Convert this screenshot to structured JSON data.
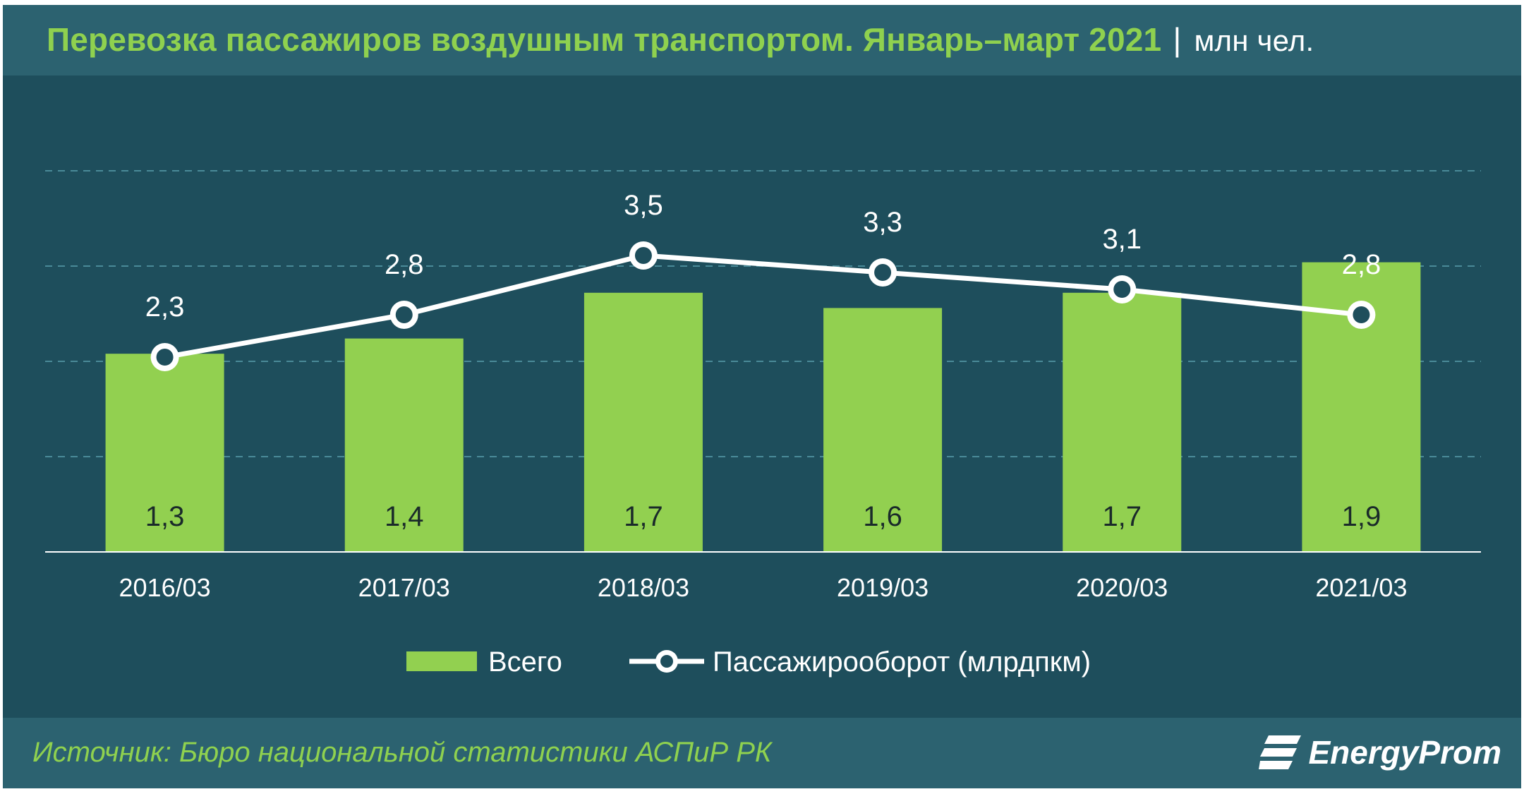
{
  "header": {
    "title": "Перевозка пассажиров воздушным транспортом. Январь–март 2021",
    "separator": "|",
    "unit": "млн чел."
  },
  "footer": {
    "source": "Источник: Бюро национальной  статистики АСПиР РК",
    "logo_text": "EnergyProm"
  },
  "colors": {
    "background": "#1e4e5c",
    "band": "#2c6270",
    "bar": "#92d050",
    "line": "#ffffff",
    "title": "#8fd14f"
  },
  "icons": {
    "logo": "energyprom-logo-icon"
  },
  "chart_data": {
    "type": "bar",
    "categories": [
      "2016/03",
      "2017/03",
      "2018/03",
      "2019/03",
      "2020/03",
      "2021/03"
    ],
    "series": [
      {
        "name": "Всего",
        "type": "bar",
        "axis": "left",
        "values": [
          1.3,
          1.4,
          1.7,
          1.6,
          1.7,
          1.9
        ]
      },
      {
        "name": "Пассажирооборот (млрдпкм)",
        "type": "line",
        "axis": "right",
        "values": [
          2.3,
          2.8,
          3.5,
          3.3,
          3.1,
          2.8
        ]
      }
    ],
    "value_labels": {
      "bars": [
        "1,3",
        "1,4",
        "1,7",
        "1,6",
        "1,7",
        "1,9"
      ],
      "line": [
        "2,3",
        "2,8",
        "3,5",
        "3,3",
        "3,1",
        "2,8"
      ]
    },
    "ylim_left": [
      0,
      2.5
    ],
    "ylim_right": [
      0,
      4.5
    ],
    "grid": true,
    "legend_position": "bottom"
  }
}
